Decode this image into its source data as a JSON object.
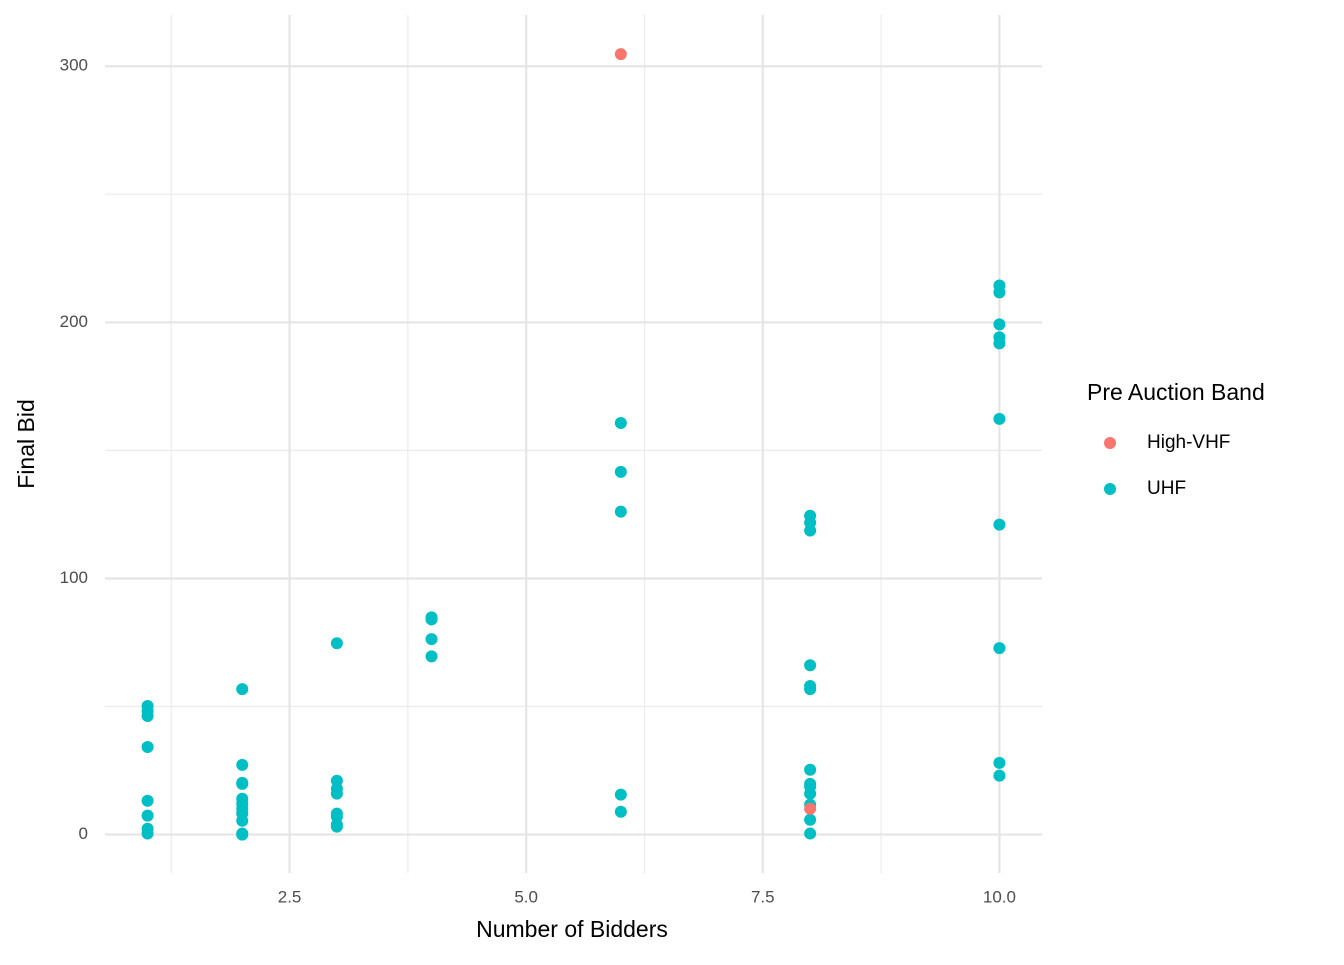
{
  "chart_data": {
    "type": "scatter",
    "x_label": "Number of Bidders",
    "y_label": "Final Bid",
    "legend_title": "Pre Auction Band",
    "legend_position": "right",
    "xlim": [
      0.55,
      10.45
    ],
    "ylim": [
      -15,
      320
    ],
    "xticks": [
      2.5,
      {
        "value": 5,
        "label": "5.0"
      },
      7.5,
      {
        "value": 10,
        "label": "10.0"
      }
    ],
    "yticks": [
      0,
      100,
      200,
      300
    ],
    "xminor": [
      1.25,
      3.75,
      6.25,
      8.75
    ],
    "yminor": [
      50,
      150,
      250
    ],
    "grid": true,
    "series": [
      {
        "name": "High-VHF",
        "color": "#F8766D",
        "x": [
          6,
          8
        ],
        "values": [
          304.7,
          10.1
        ]
      },
      {
        "name": "UHF",
        "color": "#00BFC4",
        "x": [
          1,
          1,
          1,
          1,
          1,
          1,
          1,
          1,
          2,
          2,
          2,
          2,
          2,
          2,
          2,
          2,
          2,
          2,
          2,
          3,
          3,
          3,
          3,
          3,
          3,
          3,
          3,
          4,
          4,
          4,
          4,
          6,
          6,
          6,
          6,
          6,
          8,
          8,
          8,
          8,
          8,
          8,
          8,
          8,
          8,
          8,
          8,
          8,
          8,
          10,
          10,
          10,
          10,
          10,
          10,
          10,
          10,
          10,
          10
        ],
        "values": [
          50.2,
          48.2,
          46.3,
          34.2,
          13.2,
          7.4,
          2.3,
          0.4,
          56.8,
          27.2,
          20.2,
          19.8,
          14.0,
          12.1,
          10.1,
          8.2,
          5.4,
          0.4,
          0,
          74.7,
          21.0,
          17.9,
          16.0,
          8.2,
          7.0,
          3.9,
          3.1,
          84.8,
          84.0,
          76.3,
          69.6,
          160.7,
          141.6,
          126.1,
          15.6,
          8.9,
          124.5,
          121.8,
          118.7,
          66.1,
          58.0,
          56.8,
          25.3,
          19.8,
          18.7,
          16.0,
          11.7,
          5.8,
          0.4,
          214.4,
          211.7,
          199.2,
          194.2,
          191.8,
          162.3,
          121.0,
          72.8,
          28.0,
          23.0
        ]
      }
    ]
  }
}
